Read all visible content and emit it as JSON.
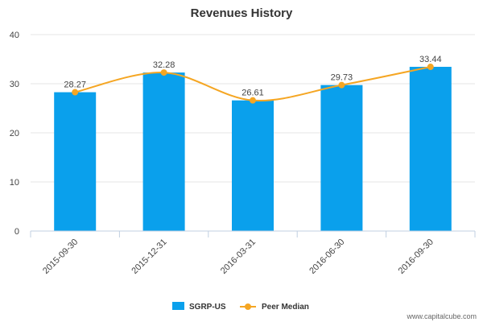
{
  "chart_data": {
    "type": "bar",
    "title": "Revenues History",
    "categories": [
      "2015-09-30",
      "2015-12-31",
      "2016-03-31",
      "2016-06-30",
      "2016-09-30"
    ],
    "series": [
      {
        "name": "SGRP-US",
        "type": "bar",
        "values": [
          28.27,
          32.28,
          26.61,
          29.73,
          33.44
        ],
        "color": "#0aa0ec"
      },
      {
        "name": "Peer Median",
        "type": "line",
        "values": [
          28.27,
          32.28,
          26.61,
          29.73,
          33.44
        ],
        "color": "#f5a623"
      }
    ],
    "data_labels": [
      "28.27",
      "32.28",
      "26.61",
      "29.73",
      "33.44"
    ],
    "yticks": [
      "0",
      "10",
      "20",
      "30",
      "40"
    ],
    "ylim": [
      0,
      40
    ],
    "grid": "horizontal",
    "legend_position": "bottom-center"
  },
  "watermark": "www.capitalcube.com"
}
